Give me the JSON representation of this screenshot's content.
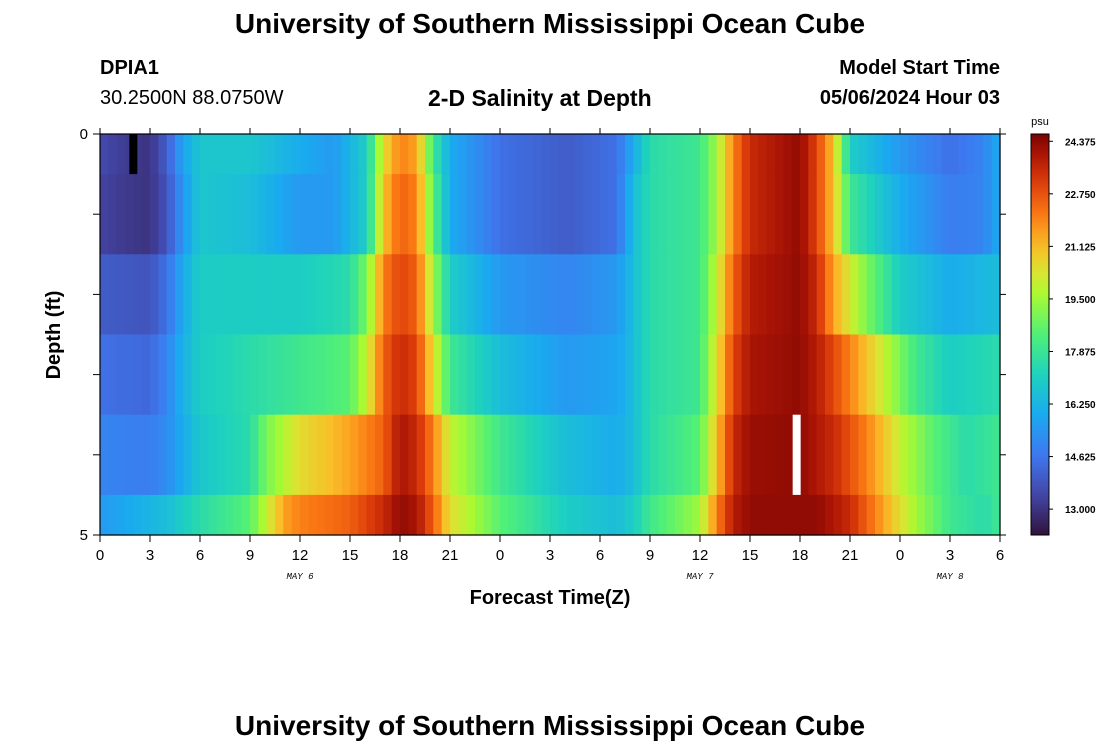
{
  "page": {
    "title_top": "University of Southern Mississippi Ocean Cube",
    "title_bottom": "University of Southern Mississippi Ocean Cube",
    "station": "DPIA1",
    "location": "30.2500N  88.0750W",
    "plot_title": "2-D Salinity at Depth",
    "model_start_label": "Model Start Time",
    "model_start_value": "05/06/2024 Hour 03"
  },
  "chart_data": {
    "type": "heatmap",
    "title": "2-D Salinity at Depth",
    "xlabel": "Forecast Time(Z)",
    "ylabel": "Depth (ft)",
    "colorbar_label": "psu",
    "x_range_hours": [
      0,
      54
    ],
    "y_range_ft": [
      0,
      5
    ],
    "x_ticks": [
      0,
      3,
      6,
      9,
      12,
      15,
      18,
      21,
      24,
      27,
      30,
      33,
      36,
      39,
      42,
      45,
      48,
      51,
      54
    ],
    "x_tick_labels": [
      "0",
      "3",
      "6",
      "9",
      "12",
      "15",
      "18",
      "21",
      "0",
      "3",
      "6",
      "9",
      "12",
      "15",
      "18",
      "21",
      "0",
      "3",
      "6"
    ],
    "y_tick_labels": [
      "0",
      "5"
    ],
    "day_labels": [
      {
        "text": "MAY 6",
        "hour": 12
      },
      {
        "text": "MAY 7",
        "hour": 36
      },
      {
        "text": "MAY 8",
        "hour": 51
      }
    ],
    "colorbar_ticks": [
      "13.000",
      "14.625",
      "16.250",
      "17.875",
      "19.500",
      "21.125",
      "22.750",
      "24.375"
    ],
    "color_range": [
      12.2,
      24.6
    ],
    "depth_layers": [
      {
        "depth_range": [
          0,
          0.5
        ],
        "profile": [
          [
            0,
            13.6
          ],
          [
            1,
            13.3
          ],
          [
            3,
            13.0
          ],
          [
            4,
            14.0
          ],
          [
            5,
            15.8
          ],
          [
            6,
            16.8
          ],
          [
            9,
            16.8
          ],
          [
            12,
            16.0
          ],
          [
            14,
            15.5
          ],
          [
            16,
            17.0
          ],
          [
            17,
            20.5
          ],
          [
            18,
            22.0
          ],
          [
            19,
            21.5
          ],
          [
            20,
            18.0
          ],
          [
            21,
            16.0
          ],
          [
            24,
            14.5
          ],
          [
            28,
            14.0
          ],
          [
            31,
            14.5
          ],
          [
            32,
            16.0
          ],
          [
            33,
            17.5
          ],
          [
            36,
            18.0
          ],
          [
            37,
            19.5
          ],
          [
            38,
            22.0
          ],
          [
            39,
            23.5
          ],
          [
            42,
            24.3
          ],
          [
            43,
            23.0
          ],
          [
            44,
            21.0
          ],
          [
            45,
            17.0
          ],
          [
            48,
            15.5
          ],
          [
            51,
            14.5
          ],
          [
            53,
            15.0
          ],
          [
            54,
            16.0
          ]
        ]
      },
      {
        "depth_range": [
          0.5,
          1.5
        ],
        "profile": [
          [
            0,
            13.4
          ],
          [
            1,
            13.2
          ],
          [
            3,
            13.0
          ],
          [
            4,
            13.8
          ],
          [
            5,
            15.5
          ],
          [
            6,
            16.8
          ],
          [
            9,
            16.5
          ],
          [
            12,
            15.5
          ],
          [
            14,
            15.5
          ],
          [
            16,
            17.0
          ],
          [
            17,
            21.0
          ],
          [
            18,
            22.5
          ],
          [
            19,
            22.0
          ],
          [
            20,
            18.5
          ],
          [
            21,
            16.0
          ],
          [
            24,
            14.5
          ],
          [
            28,
            14.0
          ],
          [
            31,
            14.5
          ],
          [
            32,
            16.5
          ],
          [
            33,
            17.5
          ],
          [
            36,
            18.0
          ],
          [
            37,
            19.5
          ],
          [
            38,
            22.0
          ],
          [
            39,
            23.5
          ],
          [
            42,
            24.3
          ],
          [
            43,
            23.0
          ],
          [
            44,
            21.0
          ],
          [
            45,
            18.0
          ],
          [
            48,
            16.0
          ],
          [
            51,
            14.8
          ],
          [
            53,
            15.0
          ],
          [
            54,
            16.0
          ]
        ]
      },
      {
        "depth_range": [
          1.5,
          2.5
        ],
        "profile": [
          [
            0,
            14.0
          ],
          [
            3,
            13.8
          ],
          [
            4,
            14.5
          ],
          [
            5,
            16.0
          ],
          [
            6,
            17.0
          ],
          [
            9,
            17.0
          ],
          [
            12,
            17.0
          ],
          [
            15,
            17.5
          ],
          [
            16,
            19.0
          ],
          [
            17,
            22.0
          ],
          [
            18,
            23.0
          ],
          [
            19,
            22.5
          ],
          [
            20,
            19.5
          ],
          [
            21,
            17.0
          ],
          [
            24,
            15.5
          ],
          [
            28,
            15.0
          ],
          [
            31,
            15.5
          ],
          [
            32,
            16.5
          ],
          [
            33,
            17.5
          ],
          [
            36,
            18.0
          ],
          [
            37,
            20.0
          ],
          [
            38,
            22.5
          ],
          [
            39,
            23.8
          ],
          [
            42,
            24.3
          ],
          [
            43,
            23.5
          ],
          [
            44,
            21.5
          ],
          [
            46,
            19.0
          ],
          [
            48,
            17.0
          ],
          [
            51,
            16.0
          ],
          [
            54,
            16.5
          ]
        ]
      },
      {
        "depth_range": [
          2.5,
          3.5
        ],
        "profile": [
          [
            0,
            14.5
          ],
          [
            3,
            14.3
          ],
          [
            4,
            15.0
          ],
          [
            5,
            16.2
          ],
          [
            6,
            17.0
          ],
          [
            9,
            17.5
          ],
          [
            12,
            18.0
          ],
          [
            15,
            18.5
          ],
          [
            16,
            20.0
          ],
          [
            17,
            22.5
          ],
          [
            18,
            23.5
          ],
          [
            19,
            23.0
          ],
          [
            20,
            20.5
          ],
          [
            21,
            18.0
          ],
          [
            24,
            16.5
          ],
          [
            28,
            15.5
          ],
          [
            31,
            15.8
          ],
          [
            32,
            16.5
          ],
          [
            33,
            17.5
          ],
          [
            36,
            18.0
          ],
          [
            37,
            20.5
          ],
          [
            38,
            23.0
          ],
          [
            39,
            24.0
          ],
          [
            42,
            24.3
          ],
          [
            43,
            23.8
          ],
          [
            45,
            22.0
          ],
          [
            47,
            20.0
          ],
          [
            49,
            18.0
          ],
          [
            51,
            17.0
          ],
          [
            54,
            17.5
          ]
        ]
      },
      {
        "depth_range": [
          3.5,
          4.5
        ],
        "profile": [
          [
            0,
            15.0
          ],
          [
            3,
            14.8
          ],
          [
            4,
            15.2
          ],
          [
            5,
            16.0
          ],
          [
            6,
            16.8
          ],
          [
            9,
            17.5
          ],
          [
            10,
            19.0
          ],
          [
            12,
            20.5
          ],
          [
            15,
            21.5
          ],
          [
            17,
            22.5
          ],
          [
            18,
            24.0
          ],
          [
            19,
            23.5
          ],
          [
            20,
            22.0
          ],
          [
            21,
            20.0
          ],
          [
            24,
            18.0
          ],
          [
            28,
            16.5
          ],
          [
            31,
            16.0
          ],
          [
            32,
            16.5
          ],
          [
            33,
            17.5
          ],
          [
            36,
            18.5
          ],
          [
            37,
            21.0
          ],
          [
            38,
            23.5
          ],
          [
            39,
            24.2
          ],
          [
            42,
            24.3
          ],
          [
            44,
            23.5
          ],
          [
            46,
            22.0
          ],
          [
            48,
            20.0
          ],
          [
            50,
            18.5
          ],
          [
            52,
            17.5
          ],
          [
            54,
            18.0
          ]
        ]
      },
      {
        "depth_range": [
          4.5,
          5
        ],
        "profile": [
          [
            0,
            15.5
          ],
          [
            2,
            16.0
          ],
          [
            4,
            16.5
          ],
          [
            6,
            17.5
          ],
          [
            9,
            18.5
          ],
          [
            10,
            20.0
          ],
          [
            11,
            21.5
          ],
          [
            12,
            22.0
          ],
          [
            15,
            22.5
          ],
          [
            17,
            23.5
          ],
          [
            18,
            24.3
          ],
          [
            19,
            24.0
          ],
          [
            20,
            22.5
          ],
          [
            21,
            20.5
          ],
          [
            24,
            18.5
          ],
          [
            28,
            17.0
          ],
          [
            31,
            16.5
          ],
          [
            32,
            17.0
          ],
          [
            33,
            18.0
          ],
          [
            36,
            19.5
          ],
          [
            37,
            22.0
          ],
          [
            38,
            23.8
          ],
          [
            39,
            24.3
          ],
          [
            43,
            24.3
          ],
          [
            45,
            23.5
          ],
          [
            47,
            21.5
          ],
          [
            49,
            19.5
          ],
          [
            51,
            18.0
          ],
          [
            53,
            17.5
          ],
          [
            54,
            18.0
          ]
        ]
      }
    ],
    "markers": [
      {
        "color": "#000000",
        "hour": 2,
        "depth_range": [
          0,
          0.5
        ]
      },
      {
        "color": "#ffffff",
        "hour": 41.8,
        "depth_range": [
          3.5,
          4.5
        ]
      }
    ]
  }
}
